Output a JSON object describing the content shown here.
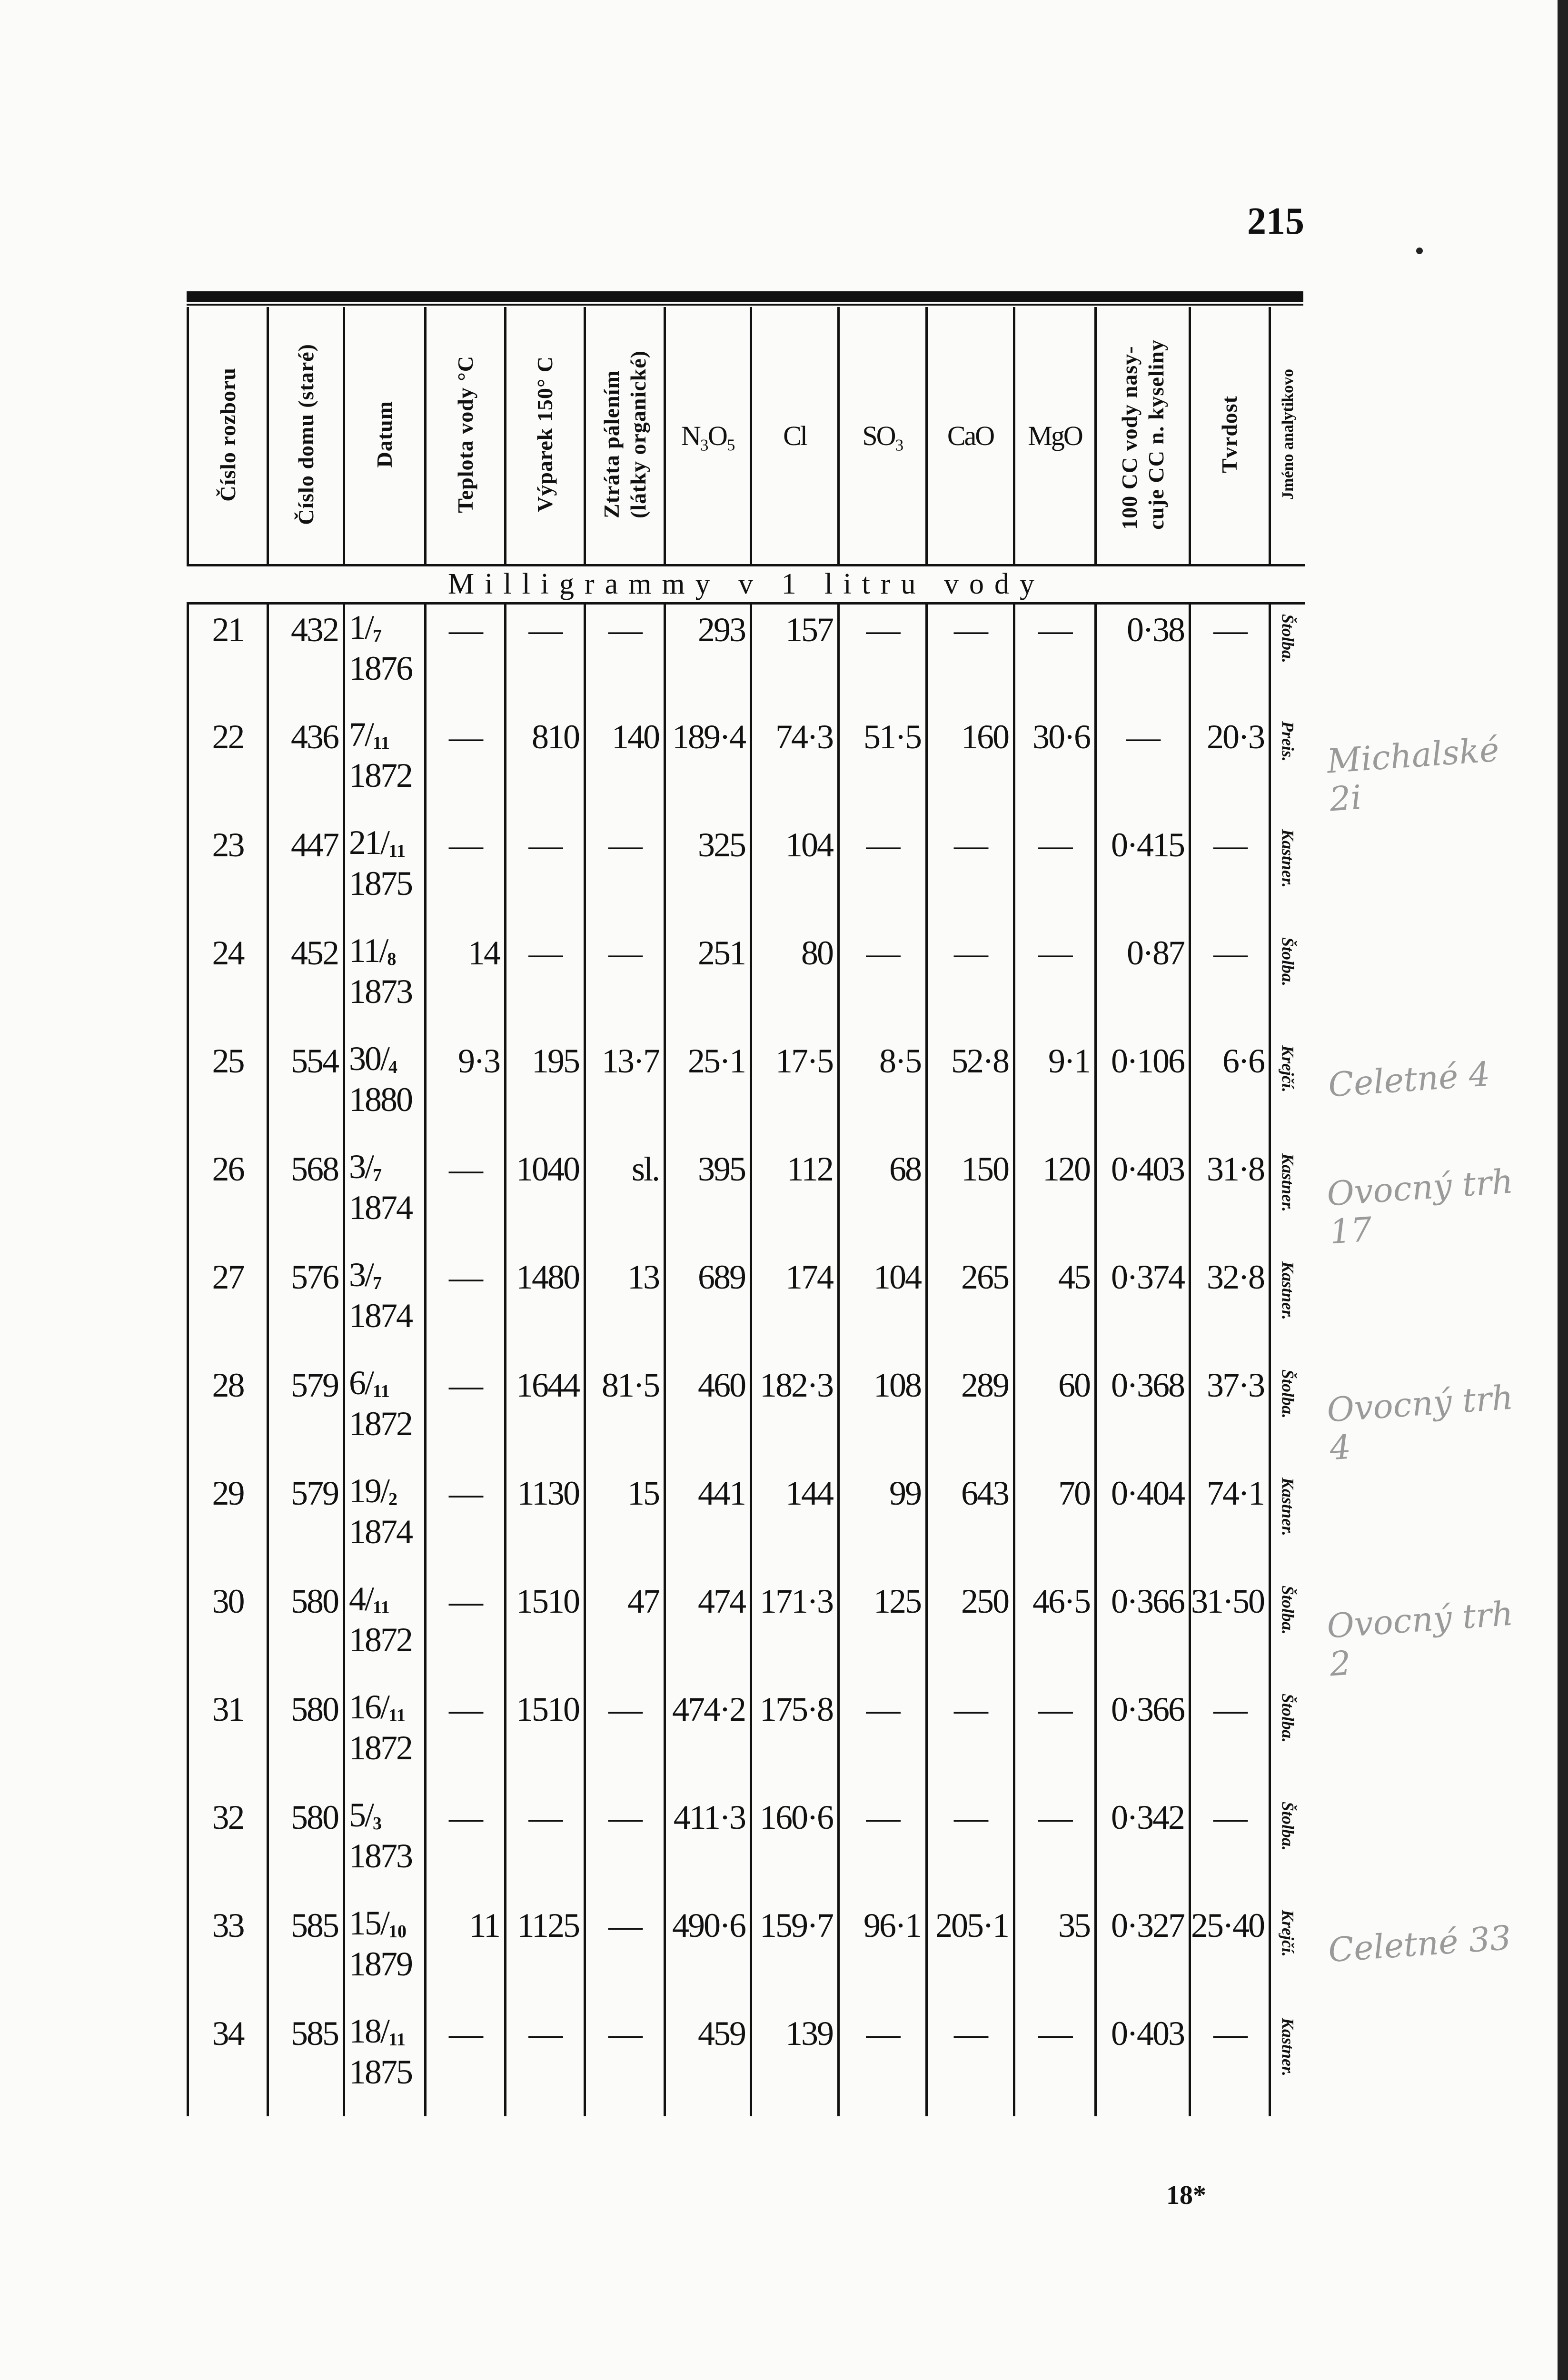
{
  "page_number": "215",
  "footer_signature": "18*",
  "columns": [
    {
      "label": "Číslo rozboru",
      "type": "vertical"
    },
    {
      "label": "Číslo domu (staré)",
      "type": "vertical"
    },
    {
      "label": "Datum",
      "type": "vertical"
    },
    {
      "label": "Teplota vody °C",
      "type": "vertical"
    },
    {
      "label": "Výparek 150° C",
      "type": "vertical"
    },
    {
      "label": "Ztráta pálením\n(látky organické)",
      "type": "vertical"
    },
    {
      "label": "N₃O₅",
      "type": "horizontal"
    },
    {
      "label": "Cl",
      "type": "horizontal"
    },
    {
      "label": "SO₃",
      "type": "horizontal"
    },
    {
      "label": "CaO",
      "type": "horizontal"
    },
    {
      "label": "MgO",
      "type": "horizontal"
    },
    {
      "label": "100 CC vody nasy-\ncuje CC n. kyseliny",
      "type": "vertical"
    },
    {
      "label": "Tvrdost",
      "type": "vertical"
    },
    {
      "label": "Jméno analytikovo",
      "type": "vertical-small"
    }
  ],
  "unit_row": "Milligrammy v 1 litru vody",
  "rows": [
    {
      "no": "21",
      "house": "432",
      "date": {
        "day": "1",
        "month": "7",
        "year": "1876"
      },
      "temp": "—",
      "residue": "—",
      "loss": "—",
      "n2o5": "293",
      "cl": "157",
      "so3": "—",
      "cao": "—",
      "mgo": "—",
      "acid": "0·38",
      "hardness": "—",
      "analyst": "Štolba."
    },
    {
      "no": "22",
      "house": "436",
      "date": {
        "day": "7",
        "month": "11",
        "year": "1872"
      },
      "temp": "—",
      "residue": "810",
      "loss": "140",
      "n2o5": "189·4",
      "cl": "74·3",
      "so3": "51·5",
      "cao": "160",
      "mgo": "30·6",
      "acid": "—",
      "hardness": "20·3",
      "analyst": "Preis."
    },
    {
      "no": "23",
      "house": "447",
      "date": {
        "day": "21",
        "month": "11",
        "year": "1875"
      },
      "temp": "—",
      "residue": "—",
      "loss": "—",
      "n2o5": "325",
      "cl": "104",
      "so3": "—",
      "cao": "—",
      "mgo": "—",
      "acid": "0·415",
      "hardness": "—",
      "analyst": "Kastner."
    },
    {
      "no": "24",
      "house": "452",
      "date": {
        "day": "11",
        "month": "8",
        "year": "1873"
      },
      "temp": "14",
      "residue": "—",
      "loss": "—",
      "n2o5": "251",
      "cl": "80",
      "so3": "—",
      "cao": "—",
      "mgo": "—",
      "acid": "0·87",
      "hardness": "—",
      "analyst": "Štolba."
    },
    {
      "no": "25",
      "house": "554",
      "date": {
        "day": "30",
        "month": "4",
        "year": "1880"
      },
      "temp": "9·3",
      "residue": "195",
      "loss": "13·7",
      "n2o5": "25·1",
      "cl": "17·5",
      "so3": "8·5",
      "cao": "52·8",
      "mgo": "9·1",
      "acid": "0·106",
      "hardness": "6·6",
      "analyst": "Krejčí."
    },
    {
      "no": "26",
      "house": "568",
      "date": {
        "day": "3",
        "month": "7",
        "year": "1874"
      },
      "temp": "—",
      "residue": "1040",
      "loss": "sl.",
      "n2o5": "395",
      "cl": "112",
      "so3": "68",
      "cao": "150",
      "mgo": "120",
      "acid": "0·403",
      "hardness": "31·8",
      "analyst": "Kastner."
    },
    {
      "no": "27",
      "house": "576",
      "date": {
        "day": "3",
        "month": "7",
        "year": "1874"
      },
      "temp": "—",
      "residue": "1480",
      "loss": "13",
      "n2o5": "689",
      "cl": "174",
      "so3": "104",
      "cao": "265",
      "mgo": "45",
      "acid": "0·374",
      "hardness": "32·8",
      "analyst": "Kastner."
    },
    {
      "no": "28",
      "house": "579",
      "date": {
        "day": "6",
        "month": "11",
        "year": "1872"
      },
      "temp": "—",
      "residue": "1644",
      "loss": "81·5",
      "n2o5": "460",
      "cl": "182·3",
      "so3": "108",
      "cao": "289",
      "mgo": "60",
      "acid": "0·368",
      "hardness": "37·3",
      "analyst": "Štolba."
    },
    {
      "no": "29",
      "house": "579",
      "date": {
        "day": "19",
        "month": "2",
        "year": "1874"
      },
      "temp": "—",
      "residue": "1130",
      "loss": "15",
      "n2o5": "441",
      "cl": "144",
      "so3": "99",
      "cao": "643",
      "mgo": "70",
      "acid": "0·404",
      "hardness": "74·1",
      "analyst": "Kastner."
    },
    {
      "no": "30",
      "house": "580",
      "date": {
        "day": "4",
        "month": "11",
        "year": "1872"
      },
      "temp": "—",
      "residue": "1510",
      "loss": "47",
      "n2o5": "474",
      "cl": "171·3",
      "so3": "125",
      "cao": "250",
      "mgo": "46·5",
      "acid": "0·366",
      "hardness": "31·50",
      "analyst": "Štolba."
    },
    {
      "no": "31",
      "house": "580",
      "date": {
        "day": "16",
        "month": "11",
        "year": "1872"
      },
      "temp": "—",
      "residue": "1510",
      "loss": "—",
      "n2o5": "474·2",
      "cl": "175·8",
      "so3": "—",
      "cao": "—",
      "mgo": "—",
      "acid": "0·366",
      "hardness": "—",
      "analyst": "Štolba."
    },
    {
      "no": "32",
      "house": "580",
      "date": {
        "day": "5",
        "month": "3",
        "year": "1873"
      },
      "temp": "—",
      "residue": "—",
      "loss": "—",
      "n2o5": "411·3",
      "cl": "160·6",
      "so3": "—",
      "cao": "—",
      "mgo": "—",
      "acid": "0·342",
      "hardness": "—",
      "analyst": "Štolba."
    },
    {
      "no": "33",
      "house": "585",
      "date": {
        "day": "15",
        "month": "10",
        "year": "1879"
      },
      "temp": "11",
      "residue": "1125",
      "loss": "—",
      "n2o5": "490·6",
      "cl": "159·7",
      "so3": "96·1",
      "cao": "205·1",
      "mgo": "35",
      "acid": "0·327",
      "hardness": "25·40",
      "analyst": "Krejčí."
    },
    {
      "no": "34",
      "house": "585",
      "date": {
        "day": "18",
        "month": "11",
        "year": "1875"
      },
      "temp": "—",
      "residue": "—",
      "loss": "—",
      "n2o5": "459",
      "cl": "139",
      "so3": "—",
      "cao": "—",
      "mgo": "—",
      "acid": "0·403",
      "hardness": "—",
      "analyst": "Kastner."
    }
  ],
  "handwritten_notes": [
    {
      "row": "22",
      "text": "Michalské\n2i"
    },
    {
      "row": "25",
      "text": "Celetné 4"
    },
    {
      "row": "26",
      "text": "Ovocný trh\n17"
    },
    {
      "row": "28",
      "text": "Ovocný trh\n4"
    },
    {
      "row": "30",
      "text": "Ovocný trh\n2"
    },
    {
      "row": "33",
      "text": "Celetné 33"
    }
  ]
}
